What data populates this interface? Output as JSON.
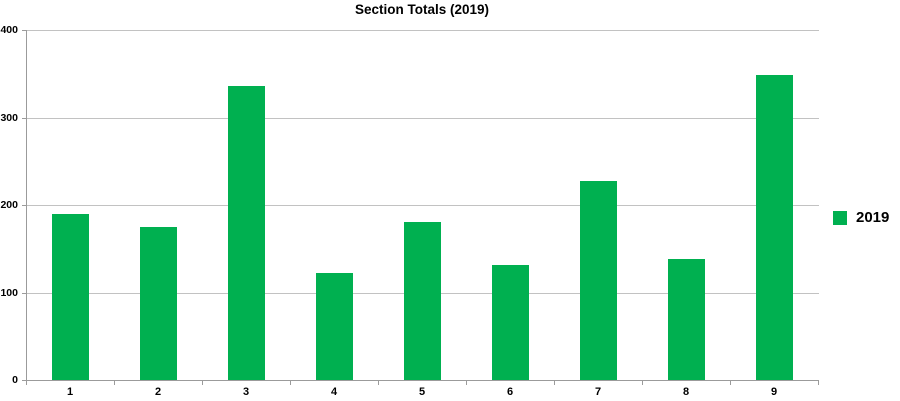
{
  "colors": {
    "accent": "#00B050",
    "gridline": "#C2C2C2",
    "axis": "#9B9B9B",
    "text": "#000000"
  },
  "legend": {
    "label": "2019"
  },
  "chart_data": {
    "type": "bar",
    "title": "Section Totals (2019)",
    "categories": [
      "1",
      "2",
      "3",
      "4",
      "5",
      "6",
      "7",
      "8",
      "9"
    ],
    "series": [
      {
        "name": "2019",
        "values": [
          190,
          175,
          336,
          122,
          181,
          132,
          227,
          138,
          349
        ]
      }
    ],
    "xlabel": "",
    "ylabel": "",
    "ylim": [
      0,
      400
    ],
    "ytick_interval": 100,
    "grid": true,
    "legend_position": "right",
    "bar_color": "#00B050"
  }
}
